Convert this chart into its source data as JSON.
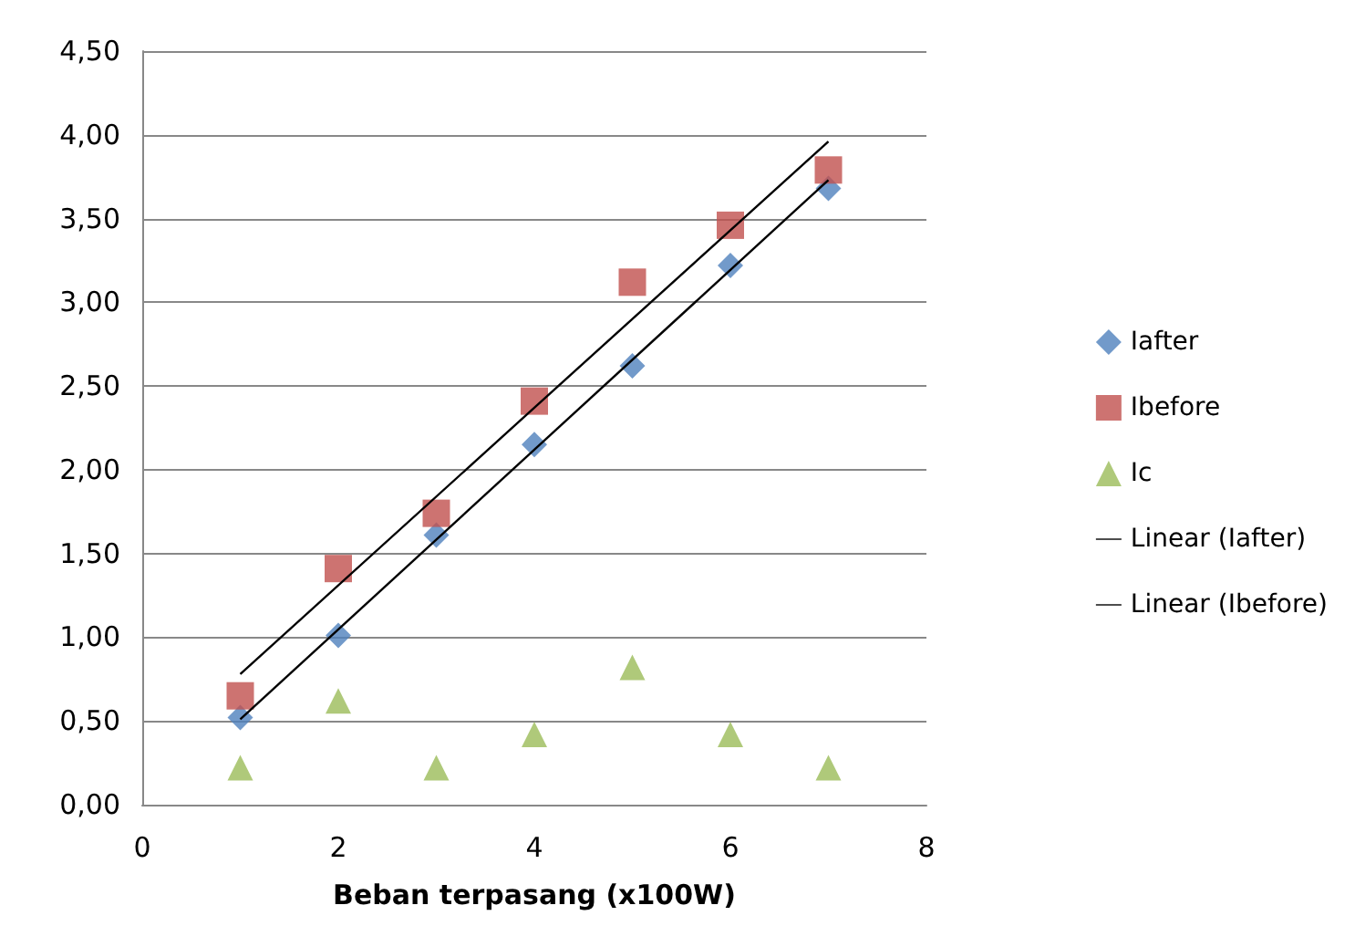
{
  "chart_data": {
    "type": "scatter",
    "xlabel": "Beban terpasang (x100W)",
    "x": [
      1,
      2,
      3,
      4,
      5,
      6,
      7
    ],
    "series": [
      {
        "name": "Iafter",
        "color": "#4f81bd",
        "marker": "diamond",
        "values": [
          0.52,
          1.01,
          1.61,
          2.15,
          2.62,
          3.22,
          3.68
        ]
      },
      {
        "name": "Ibefore",
        "color": "#c0504d",
        "marker": "square",
        "values": [
          0.65,
          1.41,
          1.74,
          2.41,
          3.12,
          3.46,
          3.79
        ]
      },
      {
        "name": "Ic",
        "color": "#9bbb59",
        "marker": "triangle",
        "values": [
          0.22,
          0.62,
          0.22,
          0.42,
          0.82,
          0.42,
          0.22
        ]
      },
      {
        "name": "Linear (Iafter)",
        "type": "line",
        "color": "#000000",
        "marker": "none",
        "x": [
          1,
          4,
          7
        ],
        "values": [
          0.51,
          2.12,
          3.73
        ]
      },
      {
        "name": "Linear (Ibefore)",
        "type": "line",
        "color": "#000000",
        "marker": "none",
        "x": [
          1,
          4,
          7
        ],
        "values": [
          0.78,
          2.37,
          3.96
        ]
      }
    ],
    "xlim": [
      0,
      8
    ],
    "xticks": [
      0,
      2,
      4,
      6,
      8
    ],
    "ylim": [
      0,
      4.5
    ],
    "yticks": [
      {
        "value": 0,
        "label": "0,00"
      },
      {
        "value": 0.5,
        "label": "0,50"
      },
      {
        "value": 1,
        "label": "1,00"
      },
      {
        "value": 1.5,
        "label": "1,50"
      },
      {
        "value": 2,
        "label": "2,00"
      },
      {
        "value": 2.5,
        "label": "2,50"
      },
      {
        "value": 3,
        "label": "3,00"
      },
      {
        "value": 3.5,
        "label": "3,50"
      },
      {
        "value": 4,
        "label": "4,00"
      },
      {
        "value": 4.5,
        "label": "4,50"
      }
    ],
    "grid": "y",
    "legend": "right"
  }
}
